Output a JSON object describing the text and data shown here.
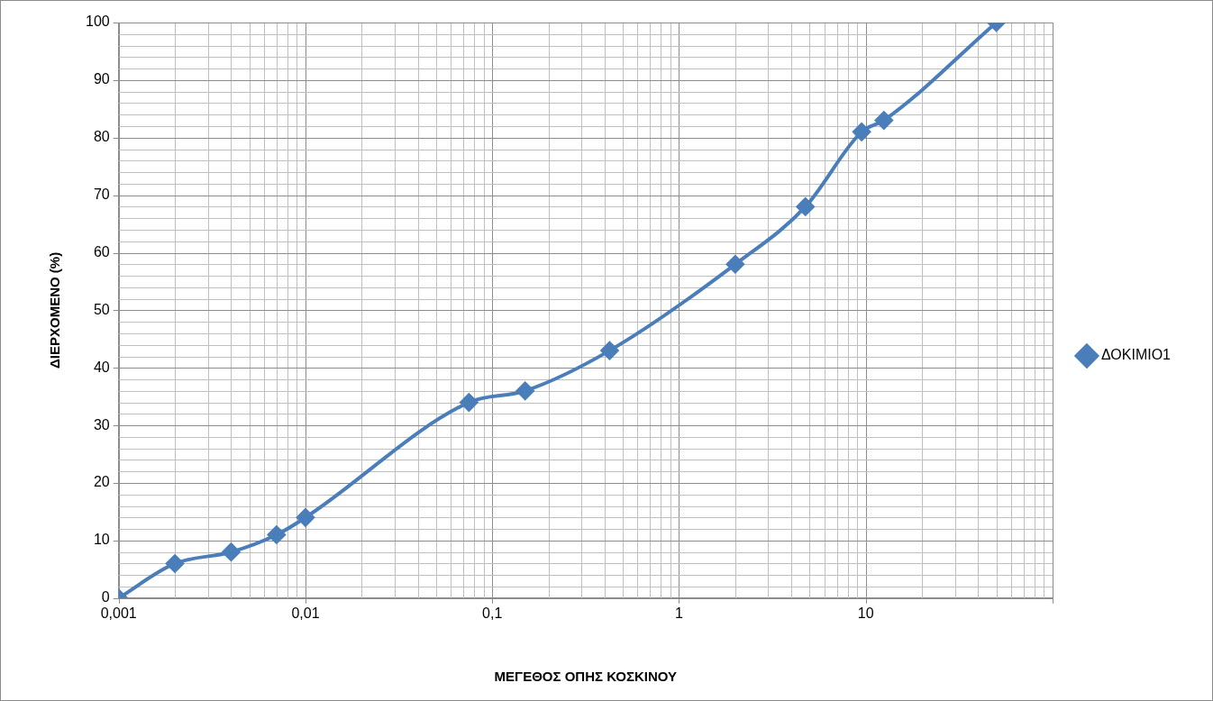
{
  "chart_data": {
    "type": "line",
    "xlabel": "ΜΕΓΕΘΟΣ ΟΠΗΣ ΚΟΣΚΙΝΟΥ",
    "ylabel": "ΔΙΕΡΧΟΜΕΝΟ (%)",
    "log": "x",
    "xlim": [
      0.001,
      100
    ],
    "ylim": [
      0,
      100
    ],
    "xticks": [
      {
        "value": 0.001,
        "label": "0,001"
      },
      {
        "value": 0.01,
        "label": "0,01"
      },
      {
        "value": 0.1,
        "label": "0,1"
      },
      {
        "value": 1,
        "label": "1"
      },
      {
        "value": 10,
        "label": "10"
      },
      {
        "value": 100,
        "label": null
      }
    ],
    "yticks": [
      0,
      10,
      20,
      30,
      40,
      50,
      60,
      70,
      80,
      90,
      100
    ],
    "grid": true,
    "legend": "right",
    "marker": "diamond",
    "line_style": "solid",
    "series": [
      {
        "name": "ΔΟΚΙΜΙΟ1",
        "color": "#4a7ebb",
        "x": [
          0.001,
          0.002,
          0.004,
          0.007,
          0.01,
          0.075,
          0.15,
          0.425,
          2,
          4.75,
          9.5,
          12.5,
          50
        ],
        "values": [
          0,
          6,
          8,
          11,
          14,
          34,
          36,
          43,
          58,
          68,
          81,
          83,
          100
        ]
      }
    ]
  }
}
